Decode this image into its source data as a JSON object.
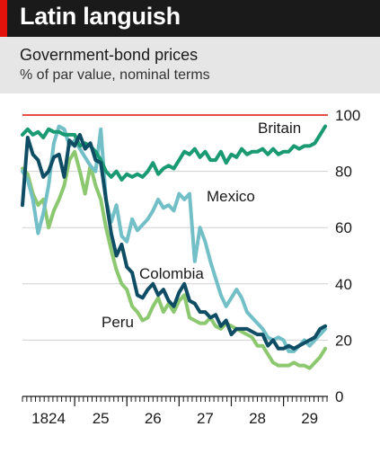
{
  "header": {
    "title": "Latin languish",
    "subtitle": "Government-bond prices",
    "unit_line": "% of par value, nominal terms"
  },
  "colors": {
    "title_bar": "#1a1a1a",
    "accent_red": "#e3120b",
    "subtitle_box": "#e6e6e6",
    "britain": "#1a9a72",
    "mexico": "#72bfc7",
    "colombia": "#0e4d63",
    "peru": "#8cc86f"
  },
  "chart_data": {
    "type": "line",
    "title": "Latin languish",
    "subtitle": "Government-bond prices",
    "ylabel": "% of par value, nominal terms",
    "ylim": [
      0,
      100
    ],
    "xlim": [
      1824.0,
      1829.85
    ],
    "y_ticks": [
      {
        "value": 0,
        "label": "0"
      },
      {
        "value": 20,
        "label": "20"
      },
      {
        "value": 40,
        "label": "40"
      },
      {
        "value": 60,
        "label": "60"
      },
      {
        "value": 80,
        "label": "80"
      },
      {
        "value": 100,
        "label": "100"
      }
    ],
    "x_ticks": [
      {
        "value": 1824.5,
        "label": "1824"
      },
      {
        "value": 1825.5,
        "label": "25"
      },
      {
        "value": 1826.5,
        "label": "26"
      },
      {
        "value": 1827.5,
        "label": "27"
      },
      {
        "value": 1828.5,
        "label": "28"
      },
      {
        "value": 1829.5,
        "label": "29"
      }
    ],
    "grid": true,
    "reference_line": 100,
    "series": [
      {
        "name": "Britain",
        "x": [
          1824.0,
          1824.1,
          1824.2,
          1824.3,
          1824.4,
          1824.5,
          1824.6,
          1824.7,
          1824.8,
          1824.9,
          1825.0,
          1825.1,
          1825.2,
          1825.3,
          1825.4,
          1825.5,
          1825.6,
          1825.7,
          1825.8,
          1825.9,
          1826.0,
          1826.1,
          1826.2,
          1826.3,
          1826.4,
          1826.5,
          1826.6,
          1826.7,
          1826.8,
          1826.9,
          1827.0,
          1827.1,
          1827.2,
          1827.3,
          1827.4,
          1827.5,
          1827.6,
          1827.7,
          1827.8,
          1827.9,
          1828.0,
          1828.1,
          1828.2,
          1828.3,
          1828.4,
          1828.5,
          1828.6,
          1828.7,
          1828.8,
          1828.9,
          1829.0,
          1829.1,
          1829.2,
          1829.3,
          1829.4,
          1829.5,
          1829.6,
          1829.7,
          1829.8
        ],
        "values": [
          93,
          95,
          93,
          94,
          92,
          95,
          94,
          94,
          93,
          93,
          93,
          89,
          90,
          89,
          87,
          84,
          80,
          78,
          80,
          77,
          79,
          78,
          79,
          78,
          80,
          83,
          79,
          81,
          82,
          81,
          84,
          87,
          86,
          88,
          85,
          87,
          84,
          84,
          87,
          83,
          86,
          85,
          88,
          86,
          87,
          87,
          88,
          86,
          88,
          86,
          87,
          87,
          89,
          88,
          89,
          89,
          90,
          93,
          96
        ]
      },
      {
        "name": "Mexico",
        "x": [
          1824.0,
          1824.1,
          1824.2,
          1824.3,
          1824.4,
          1824.5,
          1824.6,
          1824.7,
          1824.8,
          1824.9,
          1825.0,
          1825.1,
          1825.2,
          1825.3,
          1825.4,
          1825.5,
          1825.6,
          1825.7,
          1825.8,
          1825.9,
          1826.0,
          1826.1,
          1826.2,
          1826.3,
          1826.4,
          1826.5,
          1826.6,
          1826.7,
          1826.8,
          1826.9,
          1827.0,
          1827.1,
          1827.2,
          1827.3,
          1827.4,
          1827.5,
          1827.6,
          1827.7,
          1827.8,
          1827.9,
          1828.0,
          1828.1,
          1828.2,
          1828.3,
          1828.4,
          1828.5,
          1828.6,
          1828.7,
          1828.8,
          1828.9,
          1829.0,
          1829.1,
          1829.2,
          1829.3,
          1829.4,
          1829.5,
          1829.6,
          1829.7,
          1829.8
        ],
        "values": [
          80,
          77,
          70,
          58,
          65,
          75,
          90,
          96,
          95,
          89,
          91,
          88,
          85,
          82,
          80,
          95,
          70,
          62,
          68,
          57,
          55,
          63,
          59,
          61,
          63,
          66,
          70,
          67,
          68,
          66,
          72,
          70,
          72,
          48,
          60,
          55,
          48,
          42,
          36,
          32,
          35,
          38,
          35,
          30,
          28,
          26,
          24,
          21,
          20,
          21,
          20,
          16,
          16,
          18,
          20,
          18,
          20,
          22,
          24
        ]
      },
      {
        "name": "Colombia",
        "x": [
          1824.0,
          1824.1,
          1824.2,
          1824.3,
          1824.4,
          1824.5,
          1824.6,
          1824.7,
          1824.8,
          1824.9,
          1825.0,
          1825.1,
          1825.2,
          1825.3,
          1825.4,
          1825.5,
          1825.6,
          1825.7,
          1825.8,
          1825.9,
          1826.0,
          1826.1,
          1826.2,
          1826.3,
          1826.4,
          1826.5,
          1826.6,
          1826.7,
          1826.8,
          1826.9,
          1827.0,
          1827.1,
          1827.2,
          1827.3,
          1827.4,
          1827.5,
          1827.6,
          1827.7,
          1827.8,
          1827.9,
          1828.0,
          1828.1,
          1828.2,
          1828.3,
          1828.4,
          1828.5,
          1828.6,
          1828.7,
          1828.8,
          1828.9,
          1829.0,
          1829.1,
          1829.2,
          1829.3,
          1829.4,
          1829.5,
          1829.6,
          1829.7,
          1829.8
        ],
        "values": [
          68,
          92,
          86,
          84,
          78,
          80,
          85,
          86,
          78,
          91,
          89,
          93,
          88,
          90,
          84,
          83,
          70,
          58,
          50,
          54,
          46,
          44,
          36,
          35,
          38,
          40,
          36,
          38,
          34,
          32,
          37,
          40,
          34,
          33,
          30,
          30,
          28,
          29,
          25,
          27,
          22,
          24,
          24,
          24,
          23,
          22,
          22,
          18,
          20,
          17,
          17,
          18,
          17,
          18,
          19,
          20,
          21,
          24,
          25
        ]
      },
      {
        "name": "Peru",
        "x": [
          1824.0,
          1824.1,
          1824.2,
          1824.3,
          1824.4,
          1824.5,
          1824.6,
          1824.7,
          1824.8,
          1824.9,
          1825.0,
          1825.1,
          1825.2,
          1825.3,
          1825.4,
          1825.5,
          1825.6,
          1825.7,
          1825.8,
          1825.9,
          1826.0,
          1826.1,
          1826.2,
          1826.3,
          1826.4,
          1826.5,
          1826.6,
          1826.7,
          1826.8,
          1826.9,
          1827.0,
          1827.1,
          1827.2,
          1827.3,
          1827.4,
          1827.5,
          1827.6,
          1827.7,
          1827.8,
          1827.9,
          1828.0,
          1828.1,
          1828.2,
          1828.3,
          1828.4,
          1828.5,
          1828.6,
          1828.7,
          1828.8,
          1828.9,
          1829.0,
          1829.1,
          1829.2,
          1829.3,
          1829.4,
          1829.5,
          1829.6,
          1829.7,
          1829.8
        ],
        "values": [
          81,
          79,
          72,
          68,
          70,
          60,
          66,
          70,
          75,
          84,
          87,
          80,
          72,
          82,
          75,
          70,
          60,
          52,
          45,
          40,
          38,
          32,
          30,
          27,
          28,
          32,
          35,
          30,
          33,
          30,
          34,
          36,
          28,
          27,
          26,
          26,
          28,
          25,
          24,
          26,
          25,
          24,
          23,
          22,
          21,
          18,
          18,
          15,
          12,
          11,
          11,
          11,
          12,
          11,
          11,
          10,
          12,
          14,
          17
        ]
      }
    ],
    "annotations": [
      {
        "text": "Britain",
        "series": "Britain"
      },
      {
        "text": "Mexico",
        "series": "Mexico"
      },
      {
        "text": "Colombia",
        "series": "Colombia"
      },
      {
        "text": "Peru",
        "series": "Peru"
      }
    ]
  }
}
